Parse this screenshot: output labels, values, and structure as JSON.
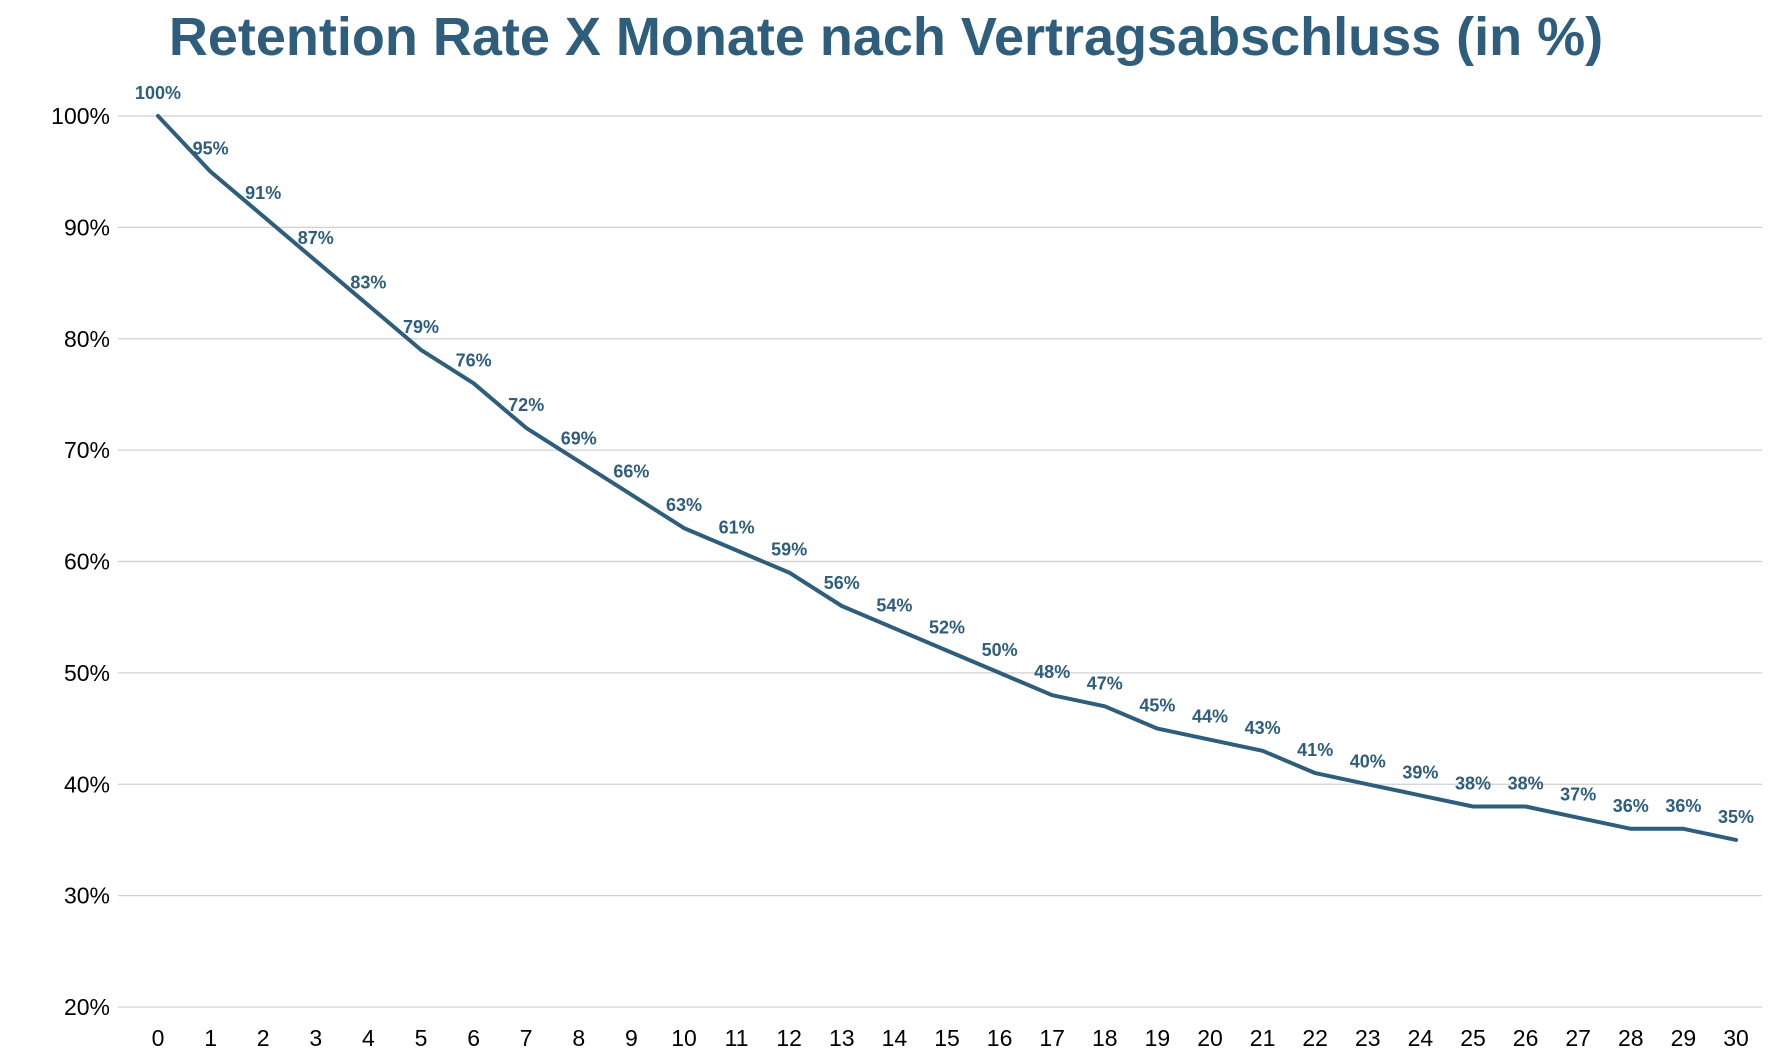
{
  "chart_data": {
    "type": "line",
    "title": "Retention Rate X Monate nach Vertragsabschluss (in %)",
    "xlabel": "",
    "ylabel": "",
    "x": [
      0,
      1,
      2,
      3,
      4,
      5,
      6,
      7,
      8,
      9,
      10,
      11,
      12,
      13,
      14,
      15,
      16,
      17,
      18,
      19,
      20,
      21,
      22,
      23,
      24,
      25,
      26,
      27,
      28,
      29,
      30
    ],
    "series": [
      {
        "values": [
          100,
          95,
          91,
          87,
          83,
          79,
          76,
          72,
          69,
          66,
          63,
          61,
          59,
          56,
          54,
          52,
          50,
          48,
          47,
          45,
          44,
          43,
          41,
          40,
          39,
          38,
          38,
          37,
          36,
          36,
          35
        ],
        "color": "#2f5d7c"
      }
    ],
    "data_labels": [
      "100%",
      "95%",
      "91%",
      "87%",
      "83%",
      "79%",
      "76%",
      "72%",
      "69%",
      "66%",
      "63%",
      "61%",
      "59%",
      "56%",
      "54%",
      "52%",
      "50%",
      "48%",
      "47%",
      "45%",
      "44%",
      "43%",
      "41%",
      "40%",
      "39%",
      "38%",
      "38%",
      "37%",
      "36%",
      "36%",
      "35%"
    ],
    "ylim": [
      20,
      100
    ],
    "yticks": [
      20,
      30,
      40,
      50,
      60,
      70,
      80,
      90,
      100
    ],
    "ytick_labels": [
      "20%",
      "30%",
      "40%",
      "50%",
      "60%",
      "70%",
      "80%",
      "90%",
      "100%"
    ],
    "xtick_labels": [
      "0",
      "1",
      "2",
      "3",
      "4",
      "5",
      "6",
      "7",
      "8",
      "9",
      "10",
      "11",
      "12",
      "13",
      "14",
      "15",
      "16",
      "17",
      "18",
      "19",
      "20",
      "21",
      "22",
      "23",
      "24",
      "25",
      "26",
      "27",
      "28",
      "29",
      "30"
    ],
    "grid": true,
    "legend": "none",
    "colors": {
      "title": "#2f5d7c",
      "line": "#2f5d7c",
      "labels": "#2f5d7c",
      "grid": "#d0d0d0"
    }
  }
}
